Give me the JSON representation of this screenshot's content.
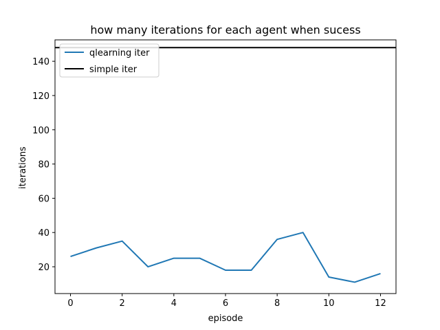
{
  "chart_data": {
    "type": "line",
    "title": "how many iterations for each agent when sucess",
    "xlabel": "episode",
    "ylabel": "iterations",
    "xlim": [
      -0.6,
      12.6
    ],
    "ylim": [
      4.35,
      152.5
    ],
    "xticks": [
      0,
      2,
      4,
      6,
      8,
      10,
      12
    ],
    "yticks": [
      20,
      40,
      60,
      80,
      100,
      120,
      140
    ],
    "grid": false,
    "legend_position": "top-left",
    "x": [
      0,
      1,
      2,
      3,
      4,
      5,
      6,
      7,
      8,
      9,
      10,
      11,
      12
    ],
    "series": [
      {
        "name": "qlearning iter",
        "color": "#1f77b4",
        "values": [
          26,
          31,
          35,
          20,
          25,
          25,
          18,
          18,
          36,
          40,
          14,
          11,
          16
        ]
      }
    ],
    "hlines": [
      {
        "name": "simple iter",
        "color": "#000000",
        "value": 148
      }
    ]
  }
}
